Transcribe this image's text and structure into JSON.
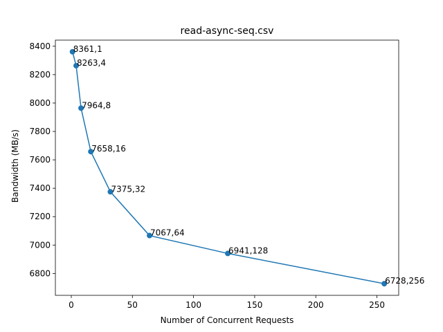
{
  "chart_data": {
    "type": "line",
    "title": "read-async-seq.csv",
    "xlabel": "Number of Concurrent Requests",
    "ylabel": "Bandwidth (MB/s)",
    "xlim": [
      -13,
      267.8
    ],
    "ylim": [
      6646,
      8443
    ],
    "xticks": [
      0,
      50,
      100,
      150,
      200,
      250
    ],
    "yticks": [
      6800,
      7000,
      7200,
      7400,
      7600,
      7800,
      8000,
      8200,
      8400
    ],
    "grid": false,
    "color": "#1f77b4",
    "series": [
      {
        "x": [
          1,
          4,
          8,
          16,
          32,
          64,
          128,
          256
        ],
        "y": [
          8361,
          8263,
          7964,
          7658,
          7375,
          7067,
          6941,
          6728
        ],
        "labels": [
          "8361,1",
          "8263,4",
          "7964,8",
          "7658,16",
          "7375,32",
          "7067,64",
          "6941,128",
          "6728,256"
        ]
      }
    ]
  }
}
